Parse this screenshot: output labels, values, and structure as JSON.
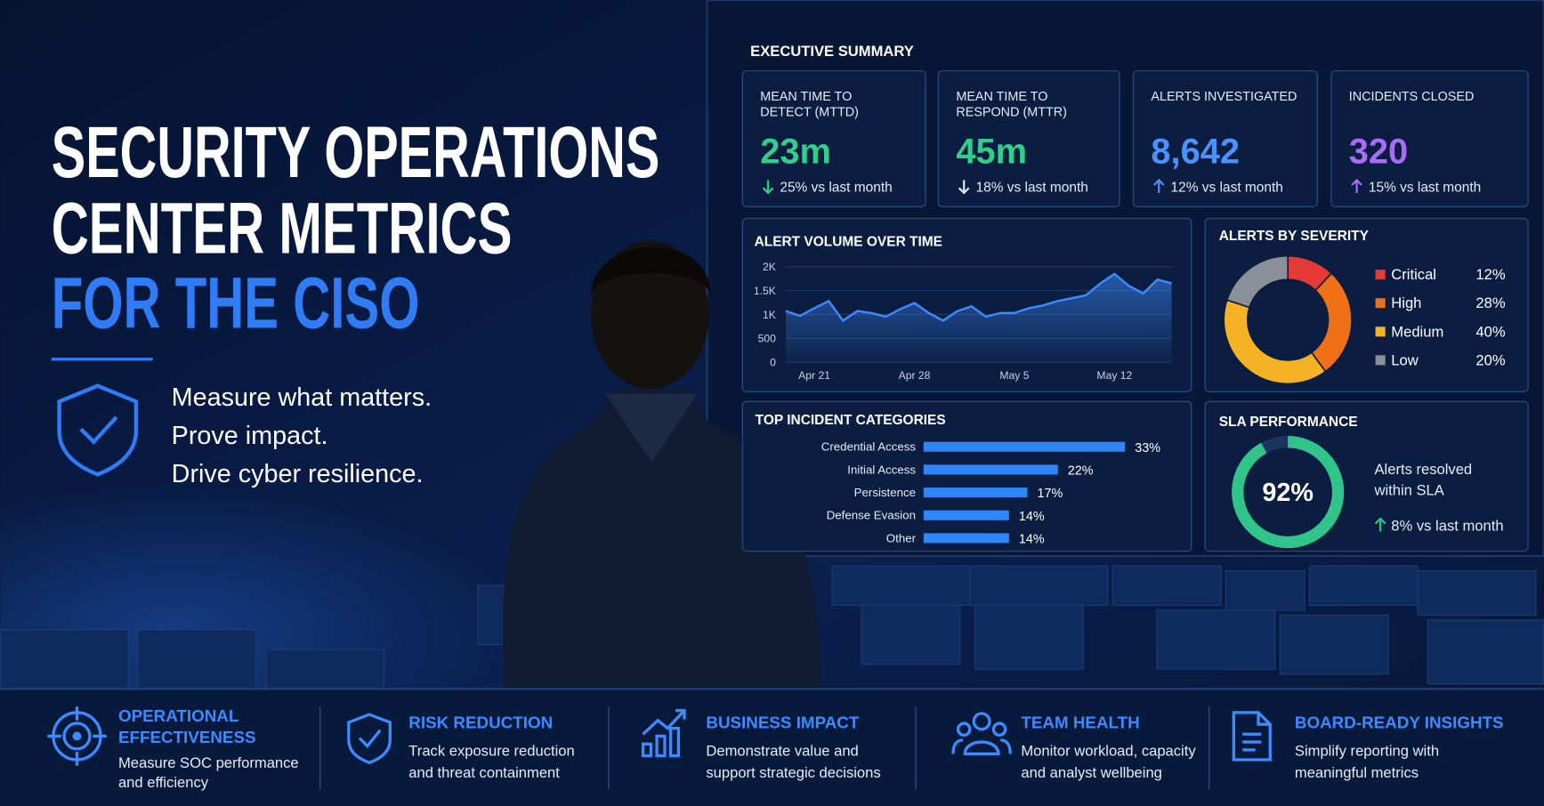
{
  "header": {
    "title_lines": [
      "SECURITY OPERATIONS",
      "CENTER METRICS",
      "FOR THE CISO"
    ],
    "taglines": [
      "Measure what matters.",
      "Prove impact.",
      "Drive cyber resilience."
    ]
  },
  "dashboard": {
    "title": "EXECUTIVE SUMMARY",
    "cards": [
      {
        "label_lines": [
          "MEAN TIME TO",
          "DETECT (MTTD)"
        ],
        "value": "23m",
        "trend": "25% vs last month",
        "direction": "down",
        "color": "#2fd08a",
        "arrow_color": "#2fd08a"
      },
      {
        "label_lines": [
          "MEAN TIME TO",
          "RESPOND (MTTR)"
        ],
        "value": "45m",
        "trend": "18% vs last month",
        "direction": "down",
        "color": "#2fd08a",
        "arrow_color": "#dfe6f0"
      },
      {
        "label_lines": [
          "ALERTS INVESTIGATED"
        ],
        "value": "8,642",
        "trend": "12% vs last month",
        "direction": "up",
        "color": "#4a93ff",
        "arrow_color": "#4a93ff"
      },
      {
        "label_lines": [
          "INCIDENTS CLOSED"
        ],
        "value": "320",
        "trend": "15% vs last month",
        "direction": "up",
        "color": "#a86df7",
        "arrow_color": "#a86df7"
      }
    ]
  },
  "chart_data": [
    {
      "type": "line",
      "title": "ALERT VOLUME OVER TIME",
      "categories": [
        null,
        null,
        "Apr 21",
        null,
        null,
        null,
        null,
        null,
        null,
        "Apr 28",
        null,
        null,
        null,
        null,
        null,
        null,
        "May 5",
        null,
        null,
        null,
        null,
        null,
        null,
        "May 12",
        null,
        null,
        null,
        null
      ],
      "values": [
        1070,
        970,
        1130,
        1280,
        870,
        1070,
        1030,
        950,
        1110,
        1240,
        1030,
        870,
        1070,
        1170,
        950,
        1030,
        1030,
        1130,
        1190,
        1280,
        1340,
        1400,
        1650,
        1850,
        1600,
        1440,
        1730,
        1650
      ],
      "color": "#3d8bff",
      "ylim": [
        0,
        2000
      ],
      "yticks": [
        0,
        500,
        {
          "value": 1000,
          "label": "1K"
        },
        {
          "value": 1500,
          "label": "1.5K"
        },
        {
          "value": 2000,
          "label": "2K"
        }
      ],
      "grid": true
    },
    {
      "type": "pie",
      "title": "ALERTS BY SEVERITY",
      "categories": [
        "Critical",
        "High",
        "Medium",
        "Low"
      ],
      "values": [
        12,
        28,
        40,
        20
      ],
      "value_labels": [
        "12%",
        "28%",
        "40%",
        "20%"
      ],
      "colors": [
        "#e53935",
        "#f07016",
        "#f5b324",
        "#8a8f98"
      ]
    },
    {
      "type": "bar",
      "title": "TOP INCIDENT CATEGORIES",
      "categories": [
        "Credential Access",
        "Initial Access",
        "Persistence",
        "Defense Evasion",
        "Other"
      ],
      "values": [
        33,
        22,
        17,
        14,
        14
      ],
      "value_labels": [
        "33%",
        "22%",
        "17%",
        "14%",
        "14%"
      ],
      "color": "#2f86f6"
    },
    {
      "type": "gauge",
      "title": "SLA PERFORMANCE",
      "value": 92,
      "value_label": "92%",
      "caption_lines": [
        "Alerts resolved",
        "within SLA"
      ],
      "trend": "8% vs last month",
      "color": "#2fc48a"
    }
  ],
  "features": [
    {
      "title_lines": [
        "OPERATIONAL",
        "EFFECTIVENESS"
      ],
      "description_lines": [
        "Measure SOC performance",
        "and efficiency"
      ]
    },
    {
      "title_lines": [
        "RISK REDUCTION"
      ],
      "description_lines": [
        "Track exposure reduction",
        "and threat containment"
      ]
    },
    {
      "title_lines": [
        "BUSINESS IMPACT"
      ],
      "description_lines": [
        "Demonstrate value and",
        "support strategic decisions"
      ]
    },
    {
      "title_lines": [
        "TEAM HEALTH"
      ],
      "description_lines": [
        "Monitor workload, capacity",
        "and analyst wellbeing"
      ]
    },
    {
      "title_lines": [
        "BOARD-READY INSIGHTS"
      ],
      "description_lines": [
        "Simplify reporting with",
        "meaningful metrics"
      ]
    }
  ]
}
